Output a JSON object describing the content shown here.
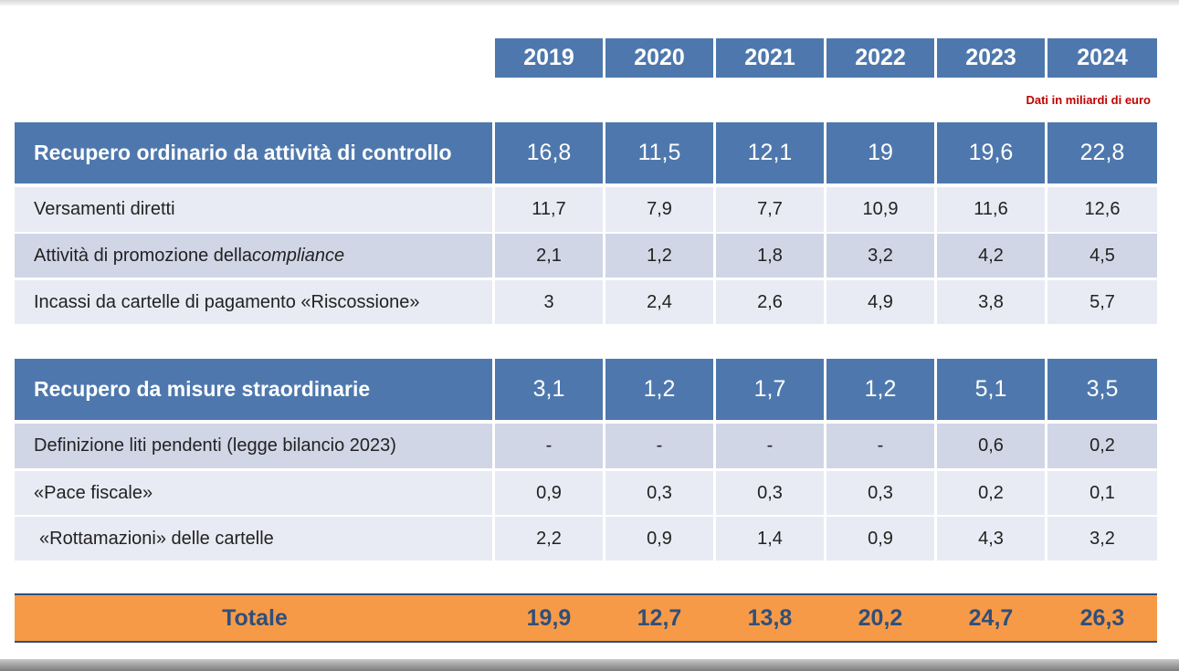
{
  "years": [
    "2019",
    "2020",
    "2021",
    "2022",
    "2023",
    "2024"
  ],
  "unit_note": "Dati in miliardi di euro",
  "ordinario": {
    "label": "Recupero ordinario da attività di controllo",
    "values": [
      "16,8",
      "11,5",
      "12,1",
      "19",
      "19,6",
      "22,8"
    ],
    "rows": [
      {
        "label": "Versamenti diretti",
        "values": [
          "11,7",
          "7,9",
          "7,7",
          "10,9",
          "11,6",
          "12,6"
        ]
      },
      {
        "label_prefix": "Attività di promozione della ",
        "label_emph": "compliance",
        "values": [
          "2,1",
          "1,2",
          "1,8",
          "3,2",
          "4,2",
          "4,5"
        ]
      },
      {
        "label": "Incassi da cartelle di pagamento «Riscossione»",
        "values": [
          "3",
          "2,4",
          "2,6",
          "4,9",
          "3,8",
          "5,7"
        ]
      }
    ]
  },
  "straordinario": {
    "label": "Recupero da misure straordinarie",
    "values": [
      "3,1",
      "1,2",
      "1,7",
      "1,2",
      "5,1",
      "3,5"
    ],
    "rows": [
      {
        "label": "Definizione liti pendenti (legge bilancio 2023)",
        "values": [
          "-",
          "-",
          "-",
          "-",
          "0,6",
          "0,2"
        ]
      },
      {
        "label": "«Pace fiscale»",
        "values": [
          "0,9",
          "0,3",
          "0,3",
          "0,3",
          "0,2",
          "0,1"
        ]
      },
      {
        "label": "«Rottamazioni» delle cartelle",
        "values": [
          "2,2",
          "0,9",
          "1,4",
          "0,9",
          "4,3",
          "3,2"
        ]
      }
    ]
  },
  "totale": {
    "label": "Totale",
    "values": [
      "19,9",
      "12,7",
      "13,8",
      "20,2",
      "24,7",
      "26,3"
    ]
  },
  "colors": {
    "header_blue": "#4e78ad",
    "row_light": "#e9ebf4",
    "row_mid": "#d0d6e6",
    "total_orange": "#f79a47",
    "total_text": "#2f4f7a",
    "note_red": "#c00000"
  }
}
